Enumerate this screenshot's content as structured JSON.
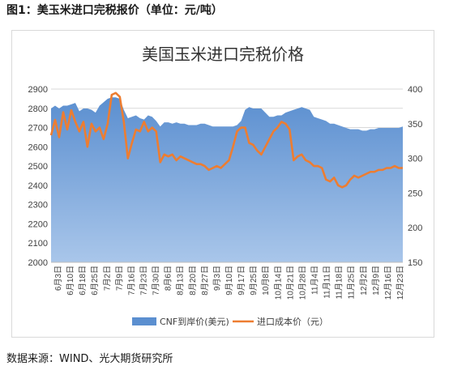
{
  "caption": "图1：美玉米进口完税报价（单位：元/吨）",
  "source": "数据来源：WIND、光大期货研究所",
  "colors": {
    "area_fill": "#5b8fd0",
    "area_fill_light": "#a9c6ea",
    "line": "#ed7d31",
    "grid": "#d9d9d9"
  },
  "chart_data": {
    "type": "area",
    "title": "美国玉米进口完税价格",
    "legend_position": "bottom",
    "grid": true,
    "x_ticks": [
      "6月3日",
      "6月10日",
      "6月18日",
      "6月25日",
      "7月2日",
      "7月9日",
      "7月16日",
      "7月23日",
      "7月30日",
      "8月6日",
      "8月13日",
      "8月20日",
      "8月27日",
      "9月3日",
      "9月10日",
      "9月17日",
      "9月25日",
      "10月8日",
      "10月14日",
      "10月21日",
      "10月28日",
      "11月4日",
      "11月11日",
      "11月18日",
      "11月25日",
      "12月2日",
      "12月9日",
      "12月16日",
      "12月23日"
    ],
    "y_left": {
      "min": 2000,
      "max": 2900,
      "step": 100
    },
    "y_right": {
      "min": 150,
      "max": 400,
      "step": 50
    },
    "series": [
      {
        "name": "CNF到岸价(美元)",
        "kind": "area",
        "axis": "right",
        "values": [
          372,
          376,
          372,
          376,
          376,
          378,
          380,
          368,
          372,
          372,
          370,
          366,
          376,
          381,
          386,
          388,
          388,
          386,
          370,
          358,
          360,
          362,
          358,
          356,
          362,
          360,
          354,
          346,
          352,
          352,
          350,
          352,
          350,
          350,
          348,
          348,
          348,
          350,
          350,
          348,
          346,
          346,
          346,
          346,
          346,
          346,
          348,
          354,
          370,
          374,
          372,
          372,
          372,
          366,
          360,
          360,
          362,
          362,
          366,
          368,
          370,
          372,
          374,
          372,
          370,
          360,
          358,
          356,
          354,
          350,
          350,
          348,
          346,
          344,
          342,
          342,
          342,
          340,
          340,
          342,
          342,
          344,
          344,
          344,
          344,
          344,
          344,
          346
        ]
      },
      {
        "name": "进口成本价（元）",
        "kind": "line",
        "axis": "left",
        "values": [
          2660,
          2740,
          2650,
          2780,
          2690,
          2790,
          2730,
          2680,
          2730,
          2600,
          2720,
          2680,
          2700,
          2640,
          2720,
          2870,
          2880,
          2860,
          2730,
          2540,
          2620,
          2690,
          2680,
          2730,
          2680,
          2700,
          2680,
          2520,
          2560,
          2550,
          2560,
          2530,
          2550,
          2540,
          2530,
          2520,
          2510,
          2510,
          2500,
          2480,
          2490,
          2500,
          2490,
          2510,
          2530,
          2600,
          2680,
          2700,
          2700,
          2620,
          2610,
          2580,
          2560,
          2600,
          2640,
          2680,
          2700,
          2730,
          2720,
          2690,
          2530,
          2550,
          2560,
          2530,
          2520,
          2500,
          2500,
          2490,
          2430,
          2420,
          2440,
          2400,
          2390,
          2400,
          2430,
          2450,
          2440,
          2450,
          2460,
          2470,
          2470,
          2480,
          2480,
          2490,
          2490,
          2500,
          2490,
          2490
        ]
      }
    ]
  }
}
